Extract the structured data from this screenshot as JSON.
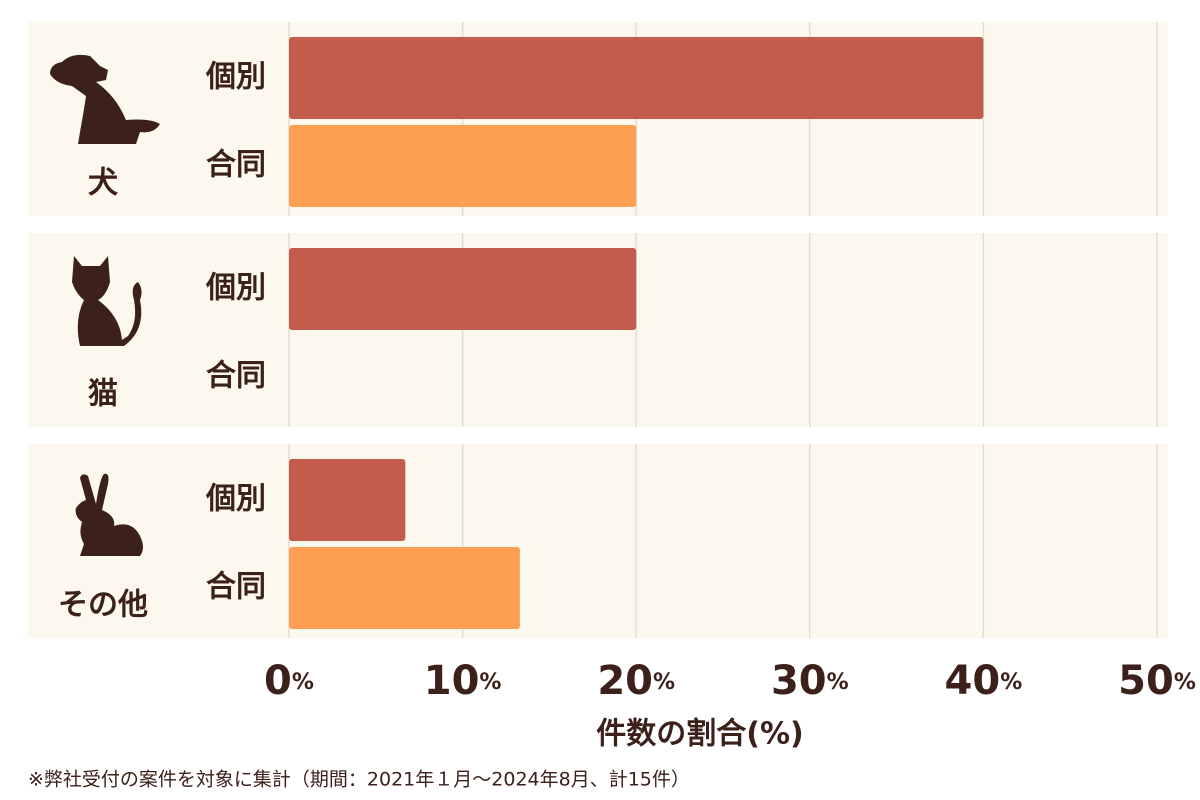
{
  "chart_data": {
    "type": "bar",
    "orientation": "horizontal",
    "categories": [
      "犬",
      "猫",
      "その他"
    ],
    "series": [
      {
        "name": "個別",
        "color": "#c45c4e",
        "values": [
          40,
          20,
          6.7
        ]
      },
      {
        "name": "合同",
        "color": "#fd9f52",
        "values": [
          20,
          0,
          13.3
        ]
      }
    ],
    "xlim": [
      0,
      50
    ],
    "xticks": [
      {
        "value": 0,
        "label": "0%"
      },
      {
        "value": 10,
        "label": "10%"
      },
      {
        "value": 20,
        "label": "20%"
      },
      {
        "value": 30,
        "label": "30%"
      },
      {
        "value": 40,
        "label": "40%"
      },
      {
        "value": 50,
        "label": "50%"
      }
    ],
    "xlabel": "件数の割合(%)",
    "grid": true,
    "note": "※弊社受付の案件を対象に集計（期間：2021年１月～2024年8月、計15件）"
  }
}
